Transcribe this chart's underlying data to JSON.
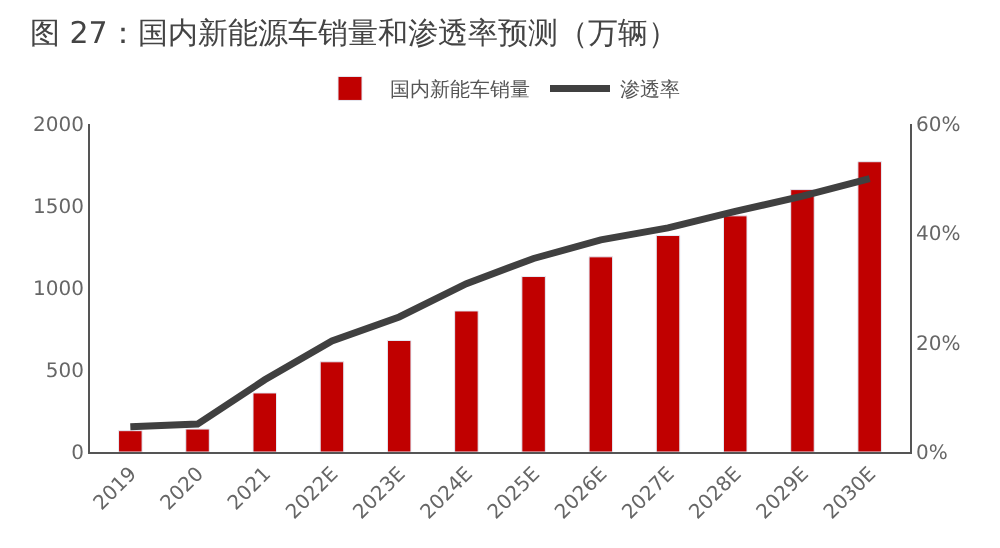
{
  "chart_data": {
    "type": "bar",
    "title": "图 27：国内新能源车销量和渗透率预测（万辆）",
    "categories": [
      "2019",
      "2020",
      "2021",
      "2022E",
      "2023E",
      "2024E",
      "2025E",
      "2026E",
      "2027E",
      "2028E",
      "2029E",
      "2030E"
    ],
    "series": [
      {
        "name": "国内新能车销量",
        "color": "#c00000",
        "values": [
          130,
          140,
          360,
          550,
          680,
          860,
          1070,
          1190,
          1320,
          1440,
          1600,
          1770
        ]
      },
      {
        "name": "渗透率",
        "type": "line",
        "axis": "y2",
        "color": "#404040",
        "values": [
          4.6,
          5.1,
          13.2,
          20.3,
          24.7,
          30.8,
          35.4,
          38.8,
          41.0,
          44.0,
          46.8,
          50.0
        ]
      }
    ],
    "ylim": [
      0,
      2000
    ],
    "yticks": [
      0,
      500,
      1000,
      1500,
      2000
    ],
    "y2lim": [
      0,
      60
    ],
    "y2ticks": [
      {
        "value": 0,
        "label": "0%"
      },
      {
        "value": 20,
        "label": "20%"
      },
      {
        "value": 40,
        "label": "40%"
      },
      {
        "value": 60,
        "label": "60%"
      }
    ],
    "legend": "top",
    "marker": "none",
    "line_style": "solid"
  }
}
